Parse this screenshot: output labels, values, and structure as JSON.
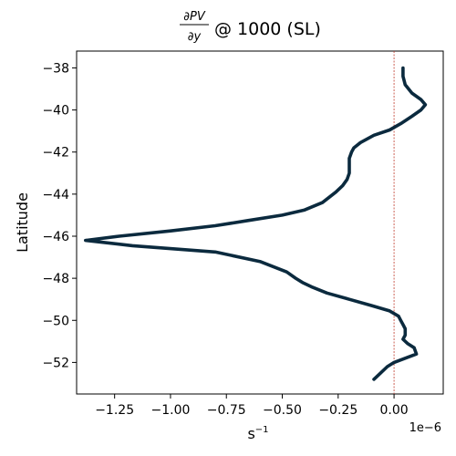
{
  "chart_data": {
    "type": "line",
    "title": {
      "frac_numerator": "∂PV",
      "frac_denominator": "∂y",
      "suffix": "@ 1000 (SL)"
    },
    "xlabel_base": "s",
    "xlabel_exp": "−1",
    "ylabel": "Latitude",
    "x_offset_label": "1e−6",
    "xlim": [
      -1.42,
      0.22
    ],
    "ylim": [
      -53.5,
      -37.2
    ],
    "x_ticks": [
      -1.25,
      -1.0,
      -0.75,
      -0.5,
      -0.25,
      0.0
    ],
    "x_tick_labels": [
      "−1.25",
      "−1.00",
      "−0.75",
      "−0.50",
      "−0.25",
      "0.00"
    ],
    "y_ticks": [
      -52,
      -50,
      -48,
      -46,
      -44,
      -42,
      -40,
      -38
    ],
    "y_tick_labels": [
      "−52",
      "−50",
      "−48",
      "−46",
      "−44",
      "−42",
      "−40",
      "−38"
    ],
    "reference_line": {
      "x": 0.0,
      "color": "#c0392b",
      "style": "dashed"
    },
    "line_color": "#0b2a3e",
    "series": [
      {
        "x": [
          0.04,
          0.04,
          0.05,
          0.08,
          0.12,
          0.14,
          0.12,
          0.08,
          0.03,
          -0.02,
          -0.09,
          -0.15,
          -0.18,
          -0.19,
          -0.2,
          -0.2,
          -0.2,
          -0.21,
          -0.23,
          -0.26,
          -0.32,
          -0.4,
          -0.5,
          -0.65,
          -0.8,
          -1.0,
          -1.23,
          -1.38,
          -1.17,
          -0.8,
          -0.6,
          -0.48,
          -0.44,
          -0.41,
          -0.37,
          -0.3,
          -0.2,
          -0.1,
          -0.02,
          0.02,
          0.03,
          0.04,
          0.05,
          0.05,
          0.04,
          0.06,
          0.09,
          0.1,
          0.05,
          0.0,
          -0.03,
          -0.06,
          -0.09
        ],
        "y": [
          -38.0,
          -38.4,
          -38.8,
          -39.2,
          -39.5,
          -39.75,
          -40.0,
          -40.3,
          -40.65,
          -40.95,
          -41.2,
          -41.55,
          -41.8,
          -42.0,
          -42.3,
          -42.7,
          -43.0,
          -43.3,
          -43.6,
          -43.9,
          -44.4,
          -44.75,
          -45.0,
          -45.25,
          -45.5,
          -45.75,
          -46.0,
          -46.2,
          -46.45,
          -46.75,
          -47.2,
          -47.7,
          -48.0,
          -48.2,
          -48.4,
          -48.7,
          -49.0,
          -49.3,
          -49.55,
          -49.8,
          -50.0,
          -50.2,
          -50.4,
          -50.7,
          -50.9,
          -51.1,
          -51.3,
          -51.6,
          -51.8,
          -52.0,
          -52.2,
          -52.5,
          -52.8
        ]
      }
    ]
  }
}
